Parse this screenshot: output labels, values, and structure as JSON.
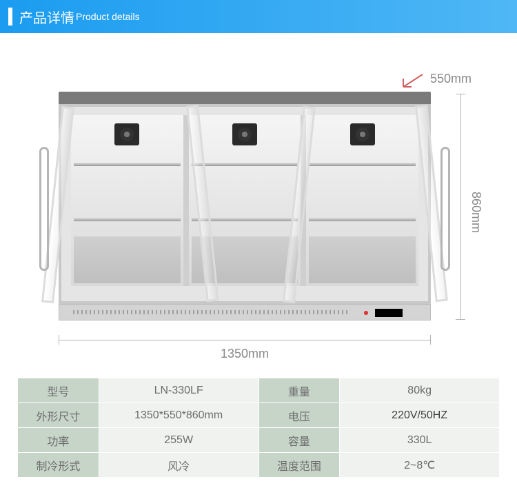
{
  "header": {
    "title_zh": "产品详情",
    "title_en": "Product details",
    "bg_gradient_from": "#1b9cf0",
    "bg_gradient_to": "#4fb7f5"
  },
  "dimensions": {
    "width_label": "1350mm",
    "height_label": "860mm",
    "depth_label": "550mm",
    "label_color": "#8a8a8a",
    "line_color": "#b4b4b4"
  },
  "product_render": {
    "top_color": "#7a7a7a",
    "frame_color": "#c8c8c8",
    "body_color": "#e5e5e5",
    "interior_top": "#f5f5f5",
    "interior_bottom": "#d9d9d9",
    "shelf_color": "#bdbdbd",
    "fan_count": 3,
    "shelf_y_positions": [
      70,
      150
    ],
    "led_color": "#e03030"
  },
  "spec_table": {
    "label_bg": "#c7d5c9",
    "value_bg": "#eff2ef",
    "text_color": "#6c6c6c",
    "rows": [
      {
        "l1": "型号",
        "v1": "LN-330LF",
        "l2": "重量",
        "v2": "80kg"
      },
      {
        "l1": "外形尺寸",
        "v1": "1350*550*860mm",
        "l2": "电压",
        "v2": "220V/50HZ",
        "v2_strong": true
      },
      {
        "l1": "功率",
        "v1": "255W",
        "l2": "容量",
        "v2": "330L"
      },
      {
        "l1": "制冷形式",
        "v1": "风冷",
        "l2": "温度范围",
        "v2": "2~8℃"
      }
    ]
  }
}
